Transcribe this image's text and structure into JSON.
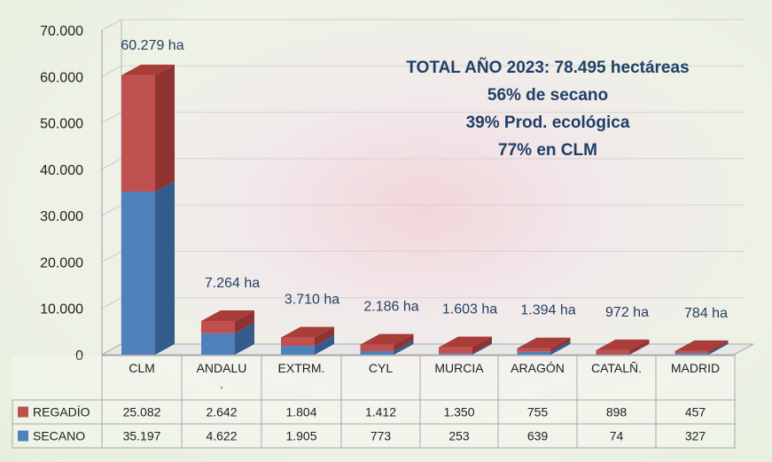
{
  "chart_data": {
    "type": "bar",
    "stacked": true,
    "categories": [
      "CLM",
      "ANDALU\n.",
      "EXTRM.",
      "CYL",
      "MURCIA",
      "ARAGÓN",
      "CATALÑ.",
      "MADRID"
    ],
    "series": [
      {
        "name": "REGADÍO",
        "values": [
          25082,
          2642,
          1804,
          1412,
          1350,
          755,
          898,
          457
        ],
        "labels": [
          "25.082",
          "2.642",
          "1.804",
          "1.412",
          "1.350",
          "755",
          "898",
          "457"
        ],
        "color": "#c0504d",
        "top_color": "#9e3b38"
      },
      {
        "name": "SECANO",
        "values": [
          35197,
          4622,
          1905,
          773,
          253,
          639,
          74,
          327
        ],
        "labels": [
          "35.197",
          "4.622",
          "1.905",
          "773",
          "253",
          "639",
          "74",
          "327"
        ],
        "color": "#4f81bd",
        "side_color": "#335b8c"
      }
    ],
    "totals_labels": [
      "60.279 ha",
      "7.264 ha",
      "3.710 ha",
      "2.186 ha",
      "1.603 ha",
      "1.394 ha",
      "972 ha",
      "784 ha"
    ],
    "y_ticks": [
      "70.000",
      "60.000",
      "50.000",
      "40.000",
      "30.000",
      "20.000",
      "10.000",
      "0"
    ],
    "ylim": [
      0,
      70000
    ],
    "annotation_lines": [
      "TOTAL AÑO 2023: 78.495 hectáreas",
      "56% de secano",
      "39% Prod. ecológica",
      "77% en CLM"
    ],
    "legend_in_table": true
  }
}
